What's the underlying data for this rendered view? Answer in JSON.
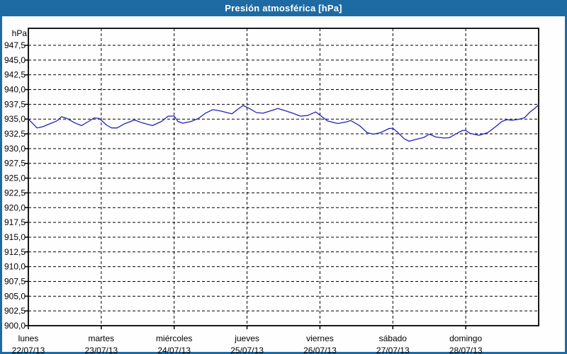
{
  "title": "Presión atmosférica [hPa]",
  "colors": {
    "titlebar": "#1e6ba3",
    "frame_border": "#1e6ba3",
    "title_text": "#ffffff",
    "background": "#fdfefd",
    "grid": "#000000",
    "axis": "#000000",
    "label_text": "#000000",
    "line": "#2222bb"
  },
  "chart_data": {
    "type": "line",
    "title": "Presión atmosférica [hPa]",
    "unit_label": "hPa",
    "ylim": [
      900,
      947.5
    ],
    "y_tick_step": 2.5,
    "y_tick_labels_top_to_bottom": [
      "947,5",
      "945,0",
      "942,5",
      "940,0",
      "937,5",
      "935,0",
      "932,5",
      "930,0",
      "927,5",
      "925,0",
      "922,5",
      "920,0",
      "917,5",
      "915,0",
      "912,5",
      "910,0",
      "907,5",
      "905,0",
      "902,5",
      "900,0"
    ],
    "grid": "dashed",
    "legend": "none",
    "x_axis": {
      "span_days": 7,
      "days": [
        {
          "name": "lunes",
          "date": "22/07/13"
        },
        {
          "name": "martes",
          "date": "23/07/13"
        },
        {
          "name": "miércoles",
          "date": "24/07/13"
        },
        {
          "name": "jueves",
          "date": "25/07/13"
        },
        {
          "name": "viernes",
          "date": "26/07/13"
        },
        {
          "name": "sábado",
          "date": "27/07/13"
        },
        {
          "name": "domingo",
          "date": "28/07/13"
        }
      ]
    },
    "series": [
      {
        "name": "Presión atmosférica",
        "color": "#2222bb",
        "x_frac": [
          0,
          0.007,
          0.017,
          0.028,
          0.042,
          0.056,
          0.065,
          0.076,
          0.09,
          0.104,
          0.118,
          0.129,
          0.139,
          0.143,
          0.153,
          0.163,
          0.174,
          0.188,
          0.208,
          0.222,
          0.243,
          0.261,
          0.274,
          0.286,
          0.293,
          0.303,
          0.319,
          0.333,
          0.347,
          0.361,
          0.375,
          0.389,
          0.399,
          0.411,
          0.421,
          0.433,
          0.447,
          0.46,
          0.475,
          0.489,
          0.504,
          0.518,
          0.533,
          0.547,
          0.563,
          0.574,
          0.586,
          0.606,
          0.622,
          0.632,
          0.649,
          0.664,
          0.676,
          0.69,
          0.707,
          0.714,
          0.722,
          0.736,
          0.746,
          0.761,
          0.775,
          0.786,
          0.799,
          0.814,
          0.825,
          0.838,
          0.85,
          0.857,
          0.865,
          0.883,
          0.9,
          0.914,
          0.928,
          0.938,
          0.947,
          0.96,
          0.972,
          0.983,
          0.992,
          1
        ],
        "values": [
          935.0,
          934.4,
          933.5,
          933.7,
          934.2,
          934.7,
          935.4,
          935.1,
          934.4,
          933.9,
          934.6,
          935.2,
          935.1,
          934.8,
          934.0,
          933.5,
          933.5,
          934.2,
          934.85,
          934.4,
          933.9,
          934.6,
          935.5,
          935.5,
          934.6,
          934.3,
          934.6,
          935.1,
          936.0,
          936.6,
          936.4,
          936.1,
          935.9,
          936.7,
          937.3,
          936.8,
          936.1,
          936.0,
          936.4,
          936.8,
          936.4,
          936.0,
          935.5,
          935.6,
          936.2,
          935.5,
          934.7,
          934.25,
          934.5,
          934.75,
          933.9,
          932.7,
          932.45,
          932.7,
          933.4,
          933.45,
          932.9,
          931.7,
          931.25,
          931.6,
          931.9,
          932.45,
          931.95,
          931.8,
          931.85,
          932.5,
          933.05,
          933.1,
          932.6,
          932.25,
          932.7,
          933.6,
          934.6,
          934.9,
          934.8,
          934.95,
          935.2,
          936.2,
          936.8,
          937.4
        ]
      }
    ]
  }
}
